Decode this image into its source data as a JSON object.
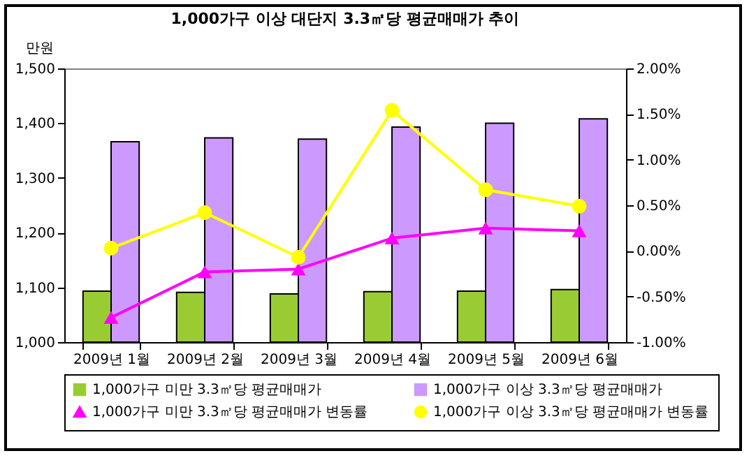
{
  "chart_data": {
    "type": "bar",
    "title": "1,000가구 이상 대단지 3.3㎡당 평균매매가 추이",
    "ylabel": "만원",
    "categories": [
      "2009년 1월",
      "2009년 2월",
      "2009년 3월",
      "2009년 4월",
      "2009년 5월",
      "2009년 6월"
    ],
    "ylim": [
      1000,
      1500
    ],
    "yticks": [
      {
        "value": 1000,
        "label": "1,000"
      },
      {
        "value": 1100,
        "label": "1,100"
      },
      {
        "value": 1200,
        "label": "1,200"
      },
      {
        "value": 1300,
        "label": "1,300"
      },
      {
        "value": 1400,
        "label": "1,400"
      },
      {
        "value": 1500,
        "label": "1,500"
      }
    ],
    "y2lim": [
      -1,
      2
    ],
    "y2ticks": [
      {
        "value": -1,
        "label": "-1.00%"
      },
      {
        "value": -0.5,
        "label": "-0.50%"
      },
      {
        "value": 0,
        "label": "0.00%"
      },
      {
        "value": 0.5,
        "label": "0.50%"
      },
      {
        "value": 1,
        "label": "1.00%"
      },
      {
        "value": 1.5,
        "label": "1.50%"
      },
      {
        "value": 2,
        "label": "2.00%"
      }
    ],
    "legend": "bottom",
    "series": [
      {
        "name": "1,000가구 미만 3.3㎡당 평균매매가",
        "color": "#99cc33",
        "values": [
          1093,
          1091,
          1088,
          1092,
          1093,
          1096
        ]
      },
      {
        "name": "1,000가구 이상 3.3㎡당 평균매매가",
        "color": "#cc99ff",
        "values": [
          1366,
          1373,
          1371,
          1393,
          1400,
          1408
        ]
      },
      {
        "name": "1,000가구 미만 3.3㎡당 평균매매가 변동률",
        "type": "line",
        "axis": "y2",
        "marker": "triangle",
        "color": "#ff00ff",
        "values": [
          -0.73,
          -0.23,
          -0.2,
          0.14,
          0.25,
          0.22
        ]
      },
      {
        "name": "1,000가구 이상 3.3㎡당 평균매매가 변동률",
        "type": "line",
        "axis": "y2",
        "marker": "circle",
        "color": "#ffff00",
        "values": [
          0.03,
          0.42,
          -0.07,
          1.54,
          0.67,
          0.49
        ]
      }
    ]
  }
}
